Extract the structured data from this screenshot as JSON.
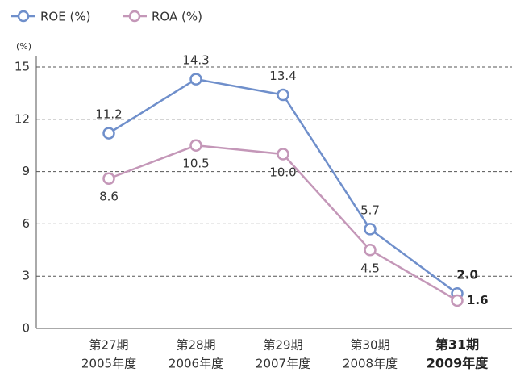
{
  "chart_data": {
    "type": "line",
    "y_unit_label": "(%)",
    "categories": [
      [
        "第27期",
        "2005年度"
      ],
      [
        "第28期",
        "2006年度"
      ],
      [
        "第29期",
        "2007年度"
      ],
      [
        "第30期",
        "2008年度"
      ],
      [
        "第31期",
        "2009年度"
      ]
    ],
    "series": [
      {
        "name": "ROE (%)",
        "color": "#6f8fcb",
        "values": [
          11.2,
          14.3,
          13.4,
          5.7,
          2.0
        ],
        "value_labels": [
          "11.2",
          "14.3",
          "13.4",
          "5.7",
          "2.0"
        ]
      },
      {
        "name": "ROA (%)",
        "color": "#c497b8",
        "values": [
          8.6,
          10.5,
          10.0,
          4.5,
          1.6
        ],
        "value_labels": [
          "8.6",
          "10.5",
          "10.0",
          "4.5",
          "1.6"
        ]
      }
    ],
    "ylim": [
      0,
      16.2
    ],
    "yticks": [
      0,
      3,
      6,
      9,
      12,
      15
    ],
    "grid": true
  }
}
